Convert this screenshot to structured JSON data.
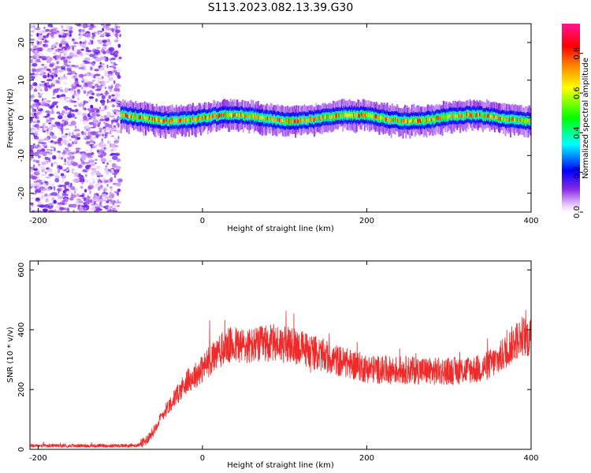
{
  "figure": {
    "title": "S113.2023.082.13.39.G30"
  },
  "chart_data": [
    {
      "type": "heatmap",
      "xlabel": "Height of straight line (km)",
      "ylabel": "Frequency (Hz)",
      "xlim": [
        -210,
        400
      ],
      "ylim": [
        -25,
        25
      ],
      "x_ticks": [
        -200,
        0,
        200,
        400
      ],
      "y_ticks": [
        -20,
        -10,
        0,
        10,
        20
      ],
      "grid": false,
      "colorbar": {
        "label": "Normalized spectral amplitude",
        "range": [
          0,
          0.95
        ],
        "ticks": [
          0.0,
          0.2,
          0.4,
          0.6,
          0.8
        ],
        "colormap": [
          "#ffffff",
          "#d9b3ff",
          "#7a00ff",
          "#0000ff",
          "#00ffff",
          "#00ff00",
          "#ffff00",
          "#ff7f00",
          "#ff0000",
          "#ff1493"
        ]
      },
      "description_regions": [
        {
          "x_range": [
            -210,
            -100
          ],
          "f_range": [
            -25,
            25
          ],
          "amplitude": 0.05,
          "pattern": "broadband noise"
        },
        {
          "x_range": [
            -100,
            400
          ],
          "f_range": [
            -3,
            3
          ],
          "amplitude": 0.85,
          "pattern": "narrow carrier near 0 Hz"
        }
      ]
    },
    {
      "type": "line",
      "xlabel": "Height of straight line (km)",
      "ylabel": "SNR (10 * v/v)",
      "xlim": [
        -210,
        400
      ],
      "ylim": [
        0,
        630
      ],
      "x_ticks": [
        -200,
        0,
        200,
        400
      ],
      "y_ticks": [
        0,
        200,
        400,
        600
      ],
      "grid": false,
      "series": [
        {
          "color": "#ee2a2a",
          "x": [
            -210,
            -150,
            -100,
            -80,
            -70,
            -60,
            -50,
            -40,
            -30,
            -20,
            -10,
            0,
            10,
            20,
            30,
            40,
            50,
            60,
            70,
            80,
            90,
            100,
            120,
            140,
            160,
            180,
            200,
            220,
            240,
            260,
            280,
            300,
            320,
            340,
            360,
            370,
            380,
            390,
            400
          ],
          "y": [
            12,
            12,
            12,
            12,
            25,
            60,
            110,
            150,
            185,
            225,
            245,
            270,
            300,
            325,
            345,
            350,
            345,
            345,
            350,
            355,
            355,
            350,
            340,
            320,
            300,
            285,
            270,
            265,
            265,
            265,
            260,
            262,
            265,
            270,
            300,
            330,
            360,
            380,
            370
          ]
        }
      ]
    }
  ]
}
